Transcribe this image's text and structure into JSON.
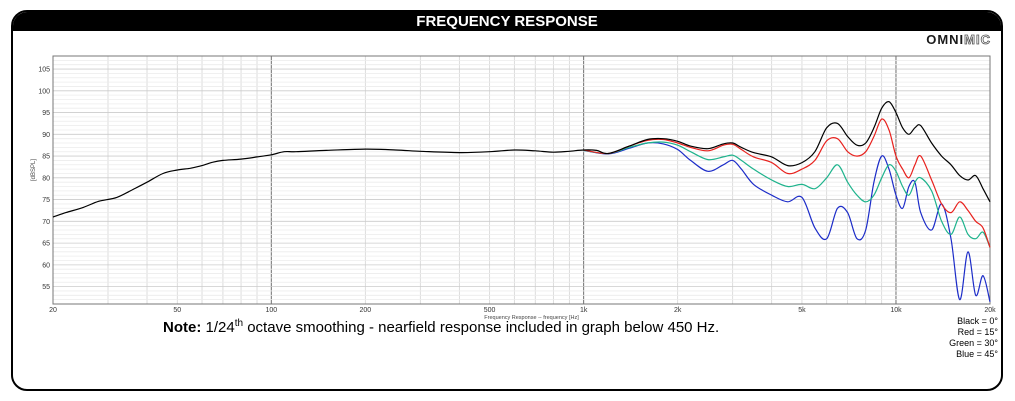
{
  "header": {
    "title": "FREQUENCY RESPONSE"
  },
  "logo": {
    "part1": "OMNI",
    "part2": "MIC"
  },
  "note": {
    "label": "Note:",
    "text_a": " 1/24",
    "sup": "th",
    "text_b": " octave smoothing - nearfield response included in graph below 450 Hz."
  },
  "legend": [
    {
      "text": "Black = 0°",
      "color": "#000000"
    },
    {
      "text": "Red = 15°",
      "color": "#e8221e"
    },
    {
      "text": "Green = 30°",
      "color": "#1eb38c"
    },
    {
      "text": "Blue = 45°",
      "color": "#1c2cc8"
    }
  ],
  "chart_data": {
    "type": "line",
    "title": "FREQUENCY RESPONSE",
    "xlabel": "Frequency Response -- frequency [Hz]",
    "ylabel": "[dBSPL]",
    "xscale": "log",
    "xlim": [
      20,
      20000
    ],
    "ylim": [
      51,
      108
    ],
    "grid": true,
    "x_ticks": [
      {
        "value": 20,
        "label": "20"
      },
      {
        "value": 50,
        "label": "50"
      },
      {
        "value": 100,
        "label": "100"
      },
      {
        "value": 200,
        "label": "200"
      },
      {
        "value": 500,
        "label": "500"
      },
      {
        "value": 1000,
        "label": "1k"
      },
      {
        "value": 2000,
        "label": "2k"
      },
      {
        "value": 5000,
        "label": "5k"
      },
      {
        "value": 10000,
        "label": "10k"
      },
      {
        "value": 20000,
        "label": "20k"
      }
    ],
    "y_ticks": [
      55,
      60,
      65,
      70,
      75,
      80,
      85,
      90,
      95,
      100,
      105
    ],
    "series": [
      {
        "name": "Black = 0°",
        "color": "#000000",
        "points": [
          [
            20,
            71
          ],
          [
            22,
            72
          ],
          [
            25,
            73.2
          ],
          [
            28,
            74.6
          ],
          [
            32,
            75.5
          ],
          [
            36,
            77.3
          ],
          [
            40,
            79
          ],
          [
            45,
            81
          ],
          [
            50,
            81.8
          ],
          [
            55,
            82.2
          ],
          [
            60,
            82.8
          ],
          [
            65,
            83.6
          ],
          [
            70,
            84
          ],
          [
            80,
            84.3
          ],
          [
            90,
            84.8
          ],
          [
            100,
            85.3
          ],
          [
            110,
            86
          ],
          [
            120,
            86
          ],
          [
            150,
            86.3
          ],
          [
            200,
            86.6
          ],
          [
            250,
            86.4
          ],
          [
            300,
            86.1
          ],
          [
            400,
            85.8
          ],
          [
            500,
            86
          ],
          [
            600,
            86.4
          ],
          [
            700,
            86.2
          ],
          [
            800,
            85.9
          ],
          [
            900,
            86.1
          ],
          [
            1000,
            86.4
          ],
          [
            1100,
            86.3
          ],
          [
            1200,
            85.6
          ],
          [
            1400,
            87.3
          ],
          [
            1600,
            88.8
          ],
          [
            1800,
            89
          ],
          [
            2000,
            88.4
          ],
          [
            2200,
            87.3
          ],
          [
            2500,
            86.7
          ],
          [
            2800,
            87.8
          ],
          [
            3000,
            88
          ],
          [
            3200,
            87
          ],
          [
            3500,
            85.8
          ],
          [
            4000,
            84.8
          ],
          [
            4500,
            82.8
          ],
          [
            5000,
            83.5
          ],
          [
            5500,
            86
          ],
          [
            6000,
            91.5
          ],
          [
            6500,
            92.5
          ],
          [
            7000,
            89.5
          ],
          [
            7500,
            87.5
          ],
          [
            8000,
            88
          ],
          [
            8500,
            91.5
          ],
          [
            9000,
            96
          ],
          [
            9500,
            97.5
          ],
          [
            10000,
            95
          ],
          [
            10500,
            91.5
          ],
          [
            11000,
            90
          ],
          [
            11500,
            91.5
          ],
          [
            12000,
            92
          ],
          [
            13000,
            88
          ],
          [
            14000,
            85
          ],
          [
            15000,
            83
          ],
          [
            16000,
            80.5
          ],
          [
            17000,
            79.5
          ],
          [
            18000,
            80.5
          ],
          [
            19000,
            77.5
          ],
          [
            20000,
            74.5
          ]
        ]
      },
      {
        "name": "Red = 15°",
        "color": "#e8221e",
        "points": [
          [
            1000,
            86.4
          ],
          [
            1200,
            85.6
          ],
          [
            1400,
            87.3
          ],
          [
            1600,
            88.6
          ],
          [
            1800,
            88.8
          ],
          [
            2000,
            88
          ],
          [
            2200,
            87
          ],
          [
            2500,
            86.2
          ],
          [
            2800,
            87.5
          ],
          [
            3000,
            87.7
          ],
          [
            3200,
            86.5
          ],
          [
            3500,
            84.8
          ],
          [
            4000,
            83.5
          ],
          [
            4500,
            81
          ],
          [
            5000,
            82
          ],
          [
            5500,
            84
          ],
          [
            6000,
            88.5
          ],
          [
            6500,
            89
          ],
          [
            7000,
            86
          ],
          [
            7500,
            85
          ],
          [
            8000,
            86
          ],
          [
            8500,
            89.5
          ],
          [
            9000,
            93.5
          ],
          [
            9500,
            91
          ],
          [
            10000,
            85
          ],
          [
            10500,
            82
          ],
          [
            11000,
            80
          ],
          [
            11500,
            83
          ],
          [
            12000,
            85
          ],
          [
            13000,
            79.5
          ],
          [
            14000,
            74
          ],
          [
            15000,
            72
          ],
          [
            16000,
            74.5
          ],
          [
            17000,
            72.5
          ],
          [
            18000,
            70
          ],
          [
            19000,
            68.5
          ],
          [
            20000,
            64
          ]
        ]
      },
      {
        "name": "Green = 30°",
        "color": "#1eb38c",
        "points": [
          [
            1000,
            86.3
          ],
          [
            1200,
            85.6
          ],
          [
            1400,
            87
          ],
          [
            1600,
            88
          ],
          [
            1800,
            88.2
          ],
          [
            2000,
            87.5
          ],
          [
            2200,
            86
          ],
          [
            2500,
            84.2
          ],
          [
            2800,
            84.8
          ],
          [
            3000,
            85.2
          ],
          [
            3200,
            84
          ],
          [
            3500,
            82
          ],
          [
            4000,
            79.5
          ],
          [
            4500,
            78
          ],
          [
            5000,
            78.5
          ],
          [
            5500,
            77.5
          ],
          [
            6000,
            80
          ],
          [
            6500,
            83
          ],
          [
            7000,
            79
          ],
          [
            7500,
            76
          ],
          [
            8000,
            74.5
          ],
          [
            8500,
            76
          ],
          [
            9000,
            80
          ],
          [
            9500,
            83
          ],
          [
            10000,
            81.5
          ],
          [
            10500,
            78
          ],
          [
            11000,
            76
          ],
          [
            11500,
            79
          ],
          [
            12000,
            80
          ],
          [
            13000,
            77
          ],
          [
            14000,
            70
          ],
          [
            15000,
            67
          ],
          [
            16000,
            71
          ],
          [
            17000,
            67
          ],
          [
            18000,
            66
          ],
          [
            19000,
            67.5
          ],
          [
            20000,
            64
          ]
        ]
      },
      {
        "name": "Blue = 45°",
        "color": "#1c2cc8",
        "points": [
          [
            1000,
            86.3
          ],
          [
            1200,
            85.5
          ],
          [
            1400,
            86.8
          ],
          [
            1600,
            88
          ],
          [
            1800,
            87.8
          ],
          [
            2000,
            86.5
          ],
          [
            2200,
            84
          ],
          [
            2500,
            81.5
          ],
          [
            2800,
            83
          ],
          [
            3000,
            84
          ],
          [
            3200,
            82
          ],
          [
            3500,
            78.5
          ],
          [
            4000,
            76
          ],
          [
            4500,
            74.5
          ],
          [
            5000,
            75.5
          ],
          [
            5500,
            68.5
          ],
          [
            6000,
            66
          ],
          [
            6500,
            73
          ],
          [
            7000,
            72
          ],
          [
            7500,
            66
          ],
          [
            8000,
            68
          ],
          [
            8500,
            79
          ],
          [
            9000,
            85
          ],
          [
            9500,
            82
          ],
          [
            10000,
            76
          ],
          [
            10500,
            73
          ],
          [
            11000,
            78
          ],
          [
            11500,
            79
          ],
          [
            12000,
            72
          ],
          [
            13000,
            68
          ],
          [
            14000,
            74
          ],
          [
            15000,
            66
          ],
          [
            16000,
            52
          ],
          [
            17000,
            63
          ],
          [
            18000,
            53
          ],
          [
            19000,
            57.5
          ],
          [
            20000,
            51.5
          ]
        ]
      }
    ]
  }
}
